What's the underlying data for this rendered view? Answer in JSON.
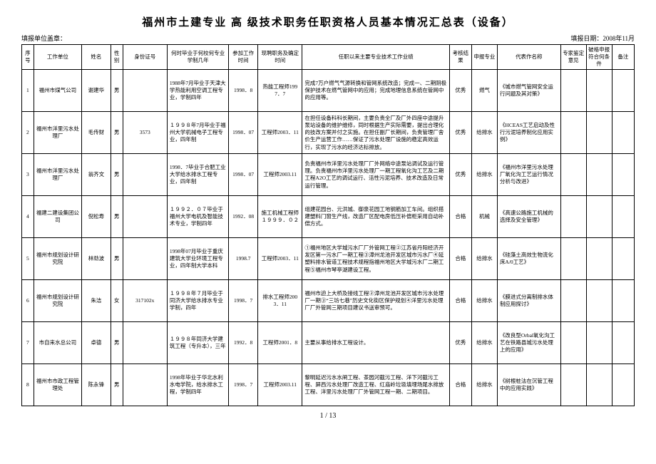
{
  "title": "福州市土建专业 高 级技术职务任职资格人员基本情况汇总表（设备）",
  "stamp_label": "填报单位盖章：",
  "fill_date_label": "填报日期：",
  "fill_date_value": "2008年11月",
  "columns": [
    "序号",
    "工作单位",
    "姓名",
    "性别",
    "身份证号",
    "何时毕业于何校何专业学制几年",
    "参加工作时间",
    "现聘职务及确定时间",
    "任职以来主要专业技术工作业绩",
    "考核结果",
    "申报专业",
    "代表作名称",
    "专家鉴定意见",
    "破格申报符合何条件",
    "备注"
  ],
  "rows": [
    {
      "seq": "1",
      "unit": "福州市煤气公司",
      "name": "谢建华",
      "sex": "男",
      "id": "",
      "edu": "1988年7月毕业于天津大学热能利用空调工程专业，学制四年",
      "work": "1998．8",
      "cert": "热能工程师1997．7",
      "exp": "完成7万户燃气气源转换和管网系统改造；完成一、二期阴极保护技术在燃气管网中的应用；完成地理信息系统在管网中的应用等。",
      "res": "优秀",
      "spec": "燃气",
      "rep": "《城市燃气管网安全运行问题及其对策》",
      "opin": "",
      "appr": "",
      "note": ""
    },
    {
      "seq": "2",
      "unit": "福州市洋里污水处理厂",
      "name": "毛传财",
      "sex": "男",
      "id": "3573",
      "edu": "１９９８年7月毕业于福州大学机械电子工程专业，四年制",
      "work": "1998．07",
      "cert": "工程师2003．11",
      "exp": "在担任设备科科长期间，主要负责全厂及厂外四座中途提升泵站设备的维护维修，同时根据生产实际需要，提出合理化的技改方案并付之实施。在担任副厂长期间，负责管理厂舍价生产运营工作……保证了污水处理厂设施的稳定高效运行，实现了污水的经济达标排放。",
      "res": "优秀",
      "spec": "给排水",
      "rep": "《HCEAS工艺启动及性行污泥培养制化应用实例》",
      "opin": "",
      "appr": "",
      "note": ""
    },
    {
      "seq": "3",
      "unit": "福州市洋里污水处理厂",
      "name": "翁齐文",
      "sex": "男",
      "id": "",
      "edu": "1998．7毕业于合肥工业大学给水排水工程专业，四年制",
      "work": "1998．07",
      "cert": "工程师2003.11",
      "exp": "负责福州市洋里污水处理厂厂外网络中途泵站调试及运行管理。负责福州市洋里污水处理厂一期工程氧化沟工艺及二期工程A2O工艺的调试运行、活性污泥培养、技术改造及日常运行管理。",
      "res": "优秀",
      "spec": "给排水",
      "rep": "《福州市洋里污水处理厂氧化沟工艺运行情况分析与改进》",
      "opin": "",
      "appr": "",
      "note": ""
    },
    {
      "seq": "4",
      "unit": "福建二建设集团公司",
      "name": "倪松寿",
      "sex": "男",
      "id": "",
      "edu": "１９９２．０７毕业于福州大学电机及智能技术专业，学制四年",
      "work": "1992．08",
      "cert": "施工机械工程师１９９９．０２",
      "exp": "组建花园台、元洪城、御泉花园工地钢筋加工车间。组织搭建塑料门窗生产线，改造厂区配电房低压补偿柜采用自动补偿方式。",
      "res": "合格",
      "spec": "机械",
      "rep": "《高速公路施工机械的选择及安全管理》",
      "opin": "",
      "appr": "",
      "note": ""
    },
    {
      "seq": "5",
      "unit": "福州市规划设计研究院",
      "name": "林劲波",
      "sex": "男",
      "id": "",
      "edu": "1998年07月毕业于重庆建筑大学业环境工程专业，四年制大学本科",
      "work": "1998.7",
      "cert": "工程师2003．11",
      "exp": "①福州地区大学城污水厂厂外管网工程②江苏省丹阳经济开发区第一污水厂一期工程③漳州龙池开发区城市污水厂④延塑料排水管道工程技术规程指福州地区大学城污水厂二期工程⑤福州市琴亭湖建设工程。",
      "res": "合格",
      "spec": "给排水",
      "rep": "《硅藻土高效生物流化床A/0工艺》",
      "opin": "",
      "appr": "",
      "note": ""
    },
    {
      "seq": "6",
      "unit": "福州市规划设计研究院",
      "name": "朱洁",
      "sex": "女",
      "id": "317102x",
      "edu": "１９９８年７月毕业于同济大学给水排水专业学制，四年",
      "work": "1998．7",
      "cert": "排水工程师2003．11",
      "exp": "福州市迫上大桥及接线工程②漳州龙池开发区城市污水处理厂一期③“三坊七巷”历史文化街区保护规划④洋里污水处理厂厂外管网三期项目建议书送审预可。",
      "res": "合格",
      "spec": "给排水",
      "rep": "《膜进式分离制排水体制应用探讨》",
      "opin": "",
      "appr": "",
      "note": ""
    },
    {
      "seq": "7",
      "unit": "市自来水总公司",
      "name": "卓德",
      "sex": "男",
      "id": "",
      "edu": "１９９８年同济大学建筑工程（专升本），三年",
      "work": "1992．8",
      "cert": "工程师2001．8",
      "exp": "主要从事给排水工程设计。",
      "res": "优秀",
      "spec": "给排水",
      "rep": "《改良型Orbal氧化沟工艺在铁路县城污水处理上的应用》",
      "opin": "",
      "appr": "",
      "note": ""
    },
    {
      "seq": "8",
      "unit": "福州市市政工程管理处",
      "name": "陈永锋",
      "sex": "男",
      "id": "",
      "edu": "1998年毕业于华北水利水电学院，给水排水工程，学制四年",
      "work": "1998．7",
      "cert": "工程师2003.11",
      "exp": "黎明延迟污水水闸工程、茶园河截污工程、洋下河截污工程、屏西污水处理厂改造工程、红庙岭垃圾填埋场尾水排放工程、洋里污水处理厂厂外管网工程一期、二期项目。",
      "res": "合格",
      "spec": "给排水",
      "rep": "《树根桩法在沉管工程中的应用实践》",
      "opin": "",
      "appr": "",
      "note": ""
    }
  ],
  "page": "1 / 13"
}
